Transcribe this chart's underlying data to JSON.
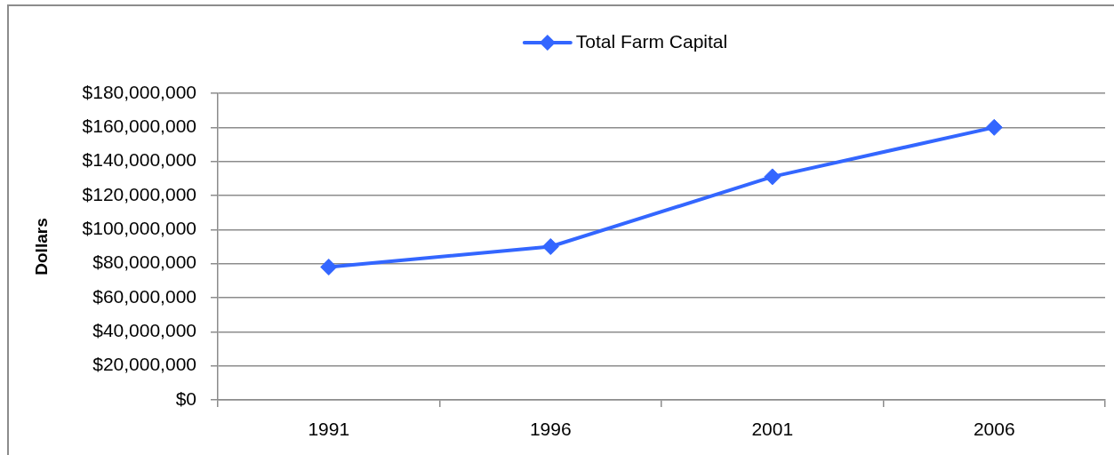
{
  "chart_data": {
    "type": "line",
    "categories": [
      "1991",
      "1996",
      "2001",
      "2006"
    ],
    "series": [
      {
        "name": "Total Farm Capital",
        "color": "#3366ff",
        "values": [
          78000000,
          90000000,
          131000000,
          160000000
        ]
      }
    ],
    "ylabel": "Dollars",
    "ylim": [
      0,
      180000000
    ],
    "yticks": [
      {
        "value": 0,
        "label": "$0"
      },
      {
        "value": 20000000,
        "label": "$20,000,000"
      },
      {
        "value": 40000000,
        "label": "$40,000,000"
      },
      {
        "value": 60000000,
        "label": "$60,000,000"
      },
      {
        "value": 80000000,
        "label": "$80,000,000"
      },
      {
        "value": 100000000,
        "label": "$100,000,000"
      },
      {
        "value": 120000000,
        "label": "$120,000,000"
      },
      {
        "value": 140000000,
        "label": "$140,000,000"
      },
      {
        "value": 160000000,
        "label": "$160,000,000"
      },
      {
        "value": 180000000,
        "label": "$180,000,000"
      }
    ],
    "grid": "y",
    "legend": "top",
    "marker": "diamond",
    "line_style": "solid"
  }
}
